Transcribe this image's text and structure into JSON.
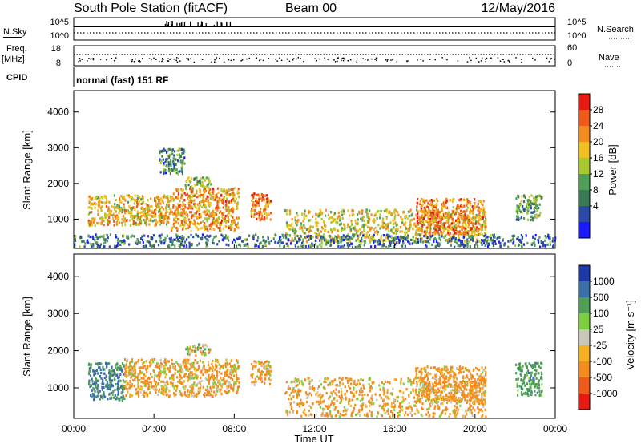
{
  "header": {
    "title": "South Pole Station (fitACF)",
    "beam": "Beam 00",
    "date": "12/May/2016"
  },
  "strip_panels": {
    "nsky_label": "N.Sky",
    "nsearch_label": "N.Search",
    "nsky_ticks": [
      "10^5",
      "10^0"
    ],
    "nsearch_ticks": [
      "10^5",
      "10^0"
    ],
    "freq_label": "Freq.",
    "freq_unit": "[MHz]",
    "freq_ticks": [
      "18",
      "8"
    ],
    "nave_label": "Nave",
    "nave_ticks": [
      "60",
      "0"
    ],
    "cpid_label": "CPID",
    "cpid_text": "normal (fast) 151 RF"
  },
  "colors": {
    "power": [
      "#1a1aff",
      "#2b4aa8",
      "#3a7a55",
      "#4f9e55",
      "#a8c830",
      "#f0c020",
      "#f58c1e",
      "#ee5a18",
      "#e81a10"
    ],
    "velocity": [
      "#e81a10",
      "#ee5a18",
      "#f58c1e",
      "#f5b020",
      "#c8c8b8",
      "#7cd040",
      "#4f9e55",
      "#3a6fa8",
      "#1a3aa8"
    ]
  },
  "chart_data": [
    {
      "type": "heatmap",
      "title": "",
      "ylabel": "Slant Range [km]",
      "ylim": [
        180,
        4600
      ],
      "yticks": [
        "4000",
        "3000",
        "2000",
        "1000"
      ],
      "colorbar_label": "Power [dB]",
      "colorbar_ticks": [
        "28",
        "24",
        "20",
        "16",
        "12",
        "8",
        "4"
      ],
      "colorbar_range": [
        0,
        32
      ],
      "regions": [
        {
          "t0": 0.7,
          "t1": 4.8,
          "r0": 850,
          "r1": 1700,
          "value": 20
        },
        {
          "t0": 4.8,
          "t1": 8.2,
          "r0": 700,
          "r1": 1900,
          "value": 22
        },
        {
          "t0": 8.8,
          "t1": 9.8,
          "r0": 1000,
          "r1": 1750,
          "value": 24
        },
        {
          "t0": 4.2,
          "t1": 5.5,
          "r0": 2300,
          "r1": 3000,
          "value": 10
        },
        {
          "t0": 5.5,
          "t1": 6.8,
          "r0": 1900,
          "r1": 2200,
          "value": 14
        },
        {
          "t0": 10.5,
          "t1": 20.5,
          "r0": 400,
          "r1": 1300,
          "value": 18
        },
        {
          "t0": 17.0,
          "t1": 20.5,
          "r0": 600,
          "r1": 1600,
          "value": 24
        },
        {
          "t0": 22.0,
          "t1": 23.3,
          "r0": 1000,
          "r1": 1700,
          "value": 12
        },
        {
          "t0": 0.0,
          "t1": 24.0,
          "r0": 250,
          "r1": 600,
          "value": 8
        }
      ]
    },
    {
      "type": "heatmap",
      "title": "",
      "xlabel": "Time UT",
      "xticks": [
        "00:00",
        "04:00",
        "08:00",
        "12:00",
        "16:00",
        "20:00",
        "00:00"
      ],
      "xlim": [
        0,
        24
      ],
      "ylabel": "Slant Range [km]",
      "ylim": [
        180,
        4600
      ],
      "yticks": [
        "4000",
        "3000",
        "2000",
        "1000"
      ],
      "colorbar_label": "Velocity [m s⁻¹]",
      "colorbar_ticks": [
        "1000",
        "500",
        "100",
        "25",
        "-25",
        "-100",
        "-500",
        "-1000"
      ],
      "regions": [
        {
          "t0": 0.7,
          "t1": 2.5,
          "r0": 700,
          "r1": 1700,
          "value": 500
        },
        {
          "t0": 2.5,
          "t1": 8.2,
          "r0": 800,
          "r1": 1800,
          "value": -150
        },
        {
          "t0": 8.8,
          "t1": 9.8,
          "r0": 1100,
          "r1": 1750,
          "value": -150
        },
        {
          "t0": 5.5,
          "t1": 6.8,
          "r0": 1900,
          "r1": 2200,
          "value": 10
        },
        {
          "t0": 10.5,
          "t1": 20.5,
          "r0": 250,
          "r1": 1300,
          "value": -150
        },
        {
          "t0": 17.0,
          "t1": 20.5,
          "r0": 600,
          "r1": 1600,
          "value": -200
        },
        {
          "t0": 22.0,
          "t1": 23.3,
          "r0": 800,
          "r1": 1700,
          "value": 300
        }
      ]
    }
  ]
}
